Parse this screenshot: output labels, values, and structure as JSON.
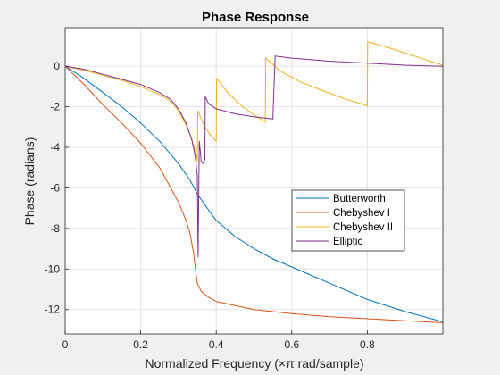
{
  "chart_data": {
    "type": "line",
    "title": "Phase Response",
    "xlabel": "Normalized Frequency (×π rad/sample)",
    "ylabel": "Phase (radians)",
    "xlim": [
      0,
      1
    ],
    "ylim": [
      -13.2,
      1.9
    ],
    "xticks": [
      "0",
      "0.2",
      "0.4",
      "0.6",
      "0.8"
    ],
    "yticks": [
      "0",
      "-2",
      "-4",
      "-6",
      "-8",
      "-10",
      "-12"
    ],
    "grid": true,
    "legend_position": "right",
    "series": [
      {
        "name": "Butterworth",
        "color": "#0072bd",
        "x": [
          0,
          0.05,
          0.1,
          0.15,
          0.2,
          0.25,
          0.3,
          0.33,
          0.35,
          0.38,
          0.4,
          0.45,
          0.5,
          0.55,
          0.6,
          0.7,
          0.8,
          0.9,
          1.0
        ],
        "y": [
          0,
          -0.6,
          -1.3,
          -2.0,
          -2.8,
          -3.7,
          -4.8,
          -5.6,
          -6.3,
          -7.1,
          -7.6,
          -8.4,
          -9.0,
          -9.5,
          -9.9,
          -10.7,
          -11.5,
          -12.1,
          -12.6
        ]
      },
      {
        "name": "Chebyshev I",
        "color": "#d95319",
        "x": [
          0,
          0.05,
          0.1,
          0.15,
          0.2,
          0.25,
          0.3,
          0.32,
          0.33,
          0.34,
          0.345,
          0.35,
          0.36,
          0.38,
          0.4,
          0.45,
          0.5,
          0.6,
          0.7,
          0.8,
          0.9,
          1.0
        ],
        "y": [
          0,
          -0.9,
          -1.9,
          -2.8,
          -3.8,
          -5.0,
          -6.7,
          -7.6,
          -8.2,
          -9.2,
          -10.0,
          -10.7,
          -11.1,
          -11.4,
          -11.6,
          -11.8,
          -12.0,
          -12.2,
          -12.35,
          -12.45,
          -12.55,
          -12.65
        ]
      },
      {
        "name": "Chebyshev II",
        "color": "#edb120",
        "x": [
          0,
          0.05,
          0.1,
          0.15,
          0.2,
          0.25,
          0.28,
          0.3,
          0.32,
          0.335,
          0.345,
          0.35,
          0.351,
          0.355,
          0.36,
          0.37,
          0.385,
          0.4,
          0.401,
          0.43,
          0.47,
          0.5,
          0.53,
          0.531,
          0.55,
          0.56,
          0.58,
          0.62,
          0.68,
          0.74,
          0.8,
          0.801,
          0.85,
          0.9,
          0.95,
          1.0
        ],
        "y": [
          0,
          -0.2,
          -0.45,
          -0.7,
          -1.0,
          -1.4,
          -1.75,
          -2.2,
          -2.9,
          -3.6,
          -4.2,
          -4.7,
          -2.2,
          -2.35,
          -2.6,
          -3.0,
          -3.4,
          -3.7,
          -0.6,
          -1.3,
          -2.0,
          -2.4,
          -2.75,
          0.4,
          0.1,
          -0.1,
          -0.35,
          -0.75,
          -1.2,
          -1.6,
          -1.95,
          1.2,
          0.95,
          0.65,
          0.35,
          0.05
        ]
      },
      {
        "name": "Elliptic",
        "color": "#7e2f8e",
        "x": [
          0,
          0.05,
          0.1,
          0.15,
          0.2,
          0.25,
          0.28,
          0.3,
          0.32,
          0.335,
          0.345,
          0.35,
          0.352,
          0.355,
          0.358,
          0.36,
          0.365,
          0.37,
          0.371,
          0.38,
          0.4,
          0.45,
          0.5,
          0.55,
          0.556,
          0.6,
          0.7,
          0.8,
          0.9,
          1.0
        ],
        "y": [
          0,
          -0.15,
          -0.4,
          -0.65,
          -0.9,
          -1.3,
          -1.65,
          -2.1,
          -2.8,
          -3.6,
          -4.5,
          -5.4,
          -9.4,
          -3.7,
          -4.2,
          -4.7,
          -4.8,
          -4.6,
          -1.5,
          -1.85,
          -2.1,
          -2.35,
          -2.5,
          -2.6,
          0.5,
          0.4,
          0.25,
          0.15,
          0.05,
          0.0
        ]
      }
    ]
  }
}
